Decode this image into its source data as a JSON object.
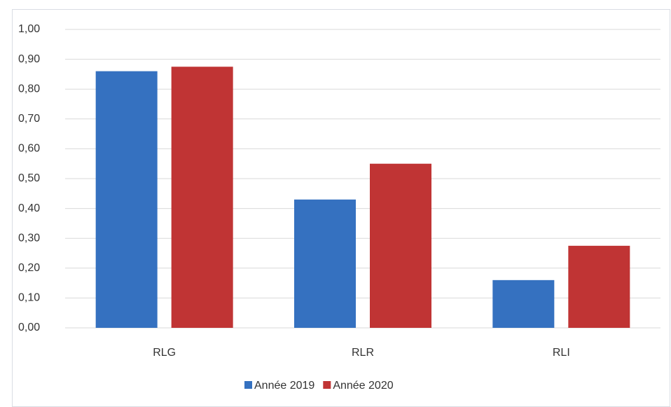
{
  "chart_data": {
    "type": "bar",
    "categories": [
      "RLG",
      "RLR",
      "RLI"
    ],
    "series": [
      {
        "name": "Année 2019",
        "color": "#3571c0",
        "values": [
          0.86,
          0.43,
          0.16
        ]
      },
      {
        "name": "Année 2020",
        "color": "#c03434",
        "values": [
          0.875,
          0.55,
          0.275
        ]
      }
    ],
    "ylim": [
      0,
      1
    ],
    "yticks": [
      {
        "value": 0,
        "label": "0,00"
      },
      {
        "value": 0.1,
        "label": "0,10"
      },
      {
        "value": 0.2,
        "label": "0,20"
      },
      {
        "value": 0.3,
        "label": "0,30"
      },
      {
        "value": 0.4,
        "label": "0,40"
      },
      {
        "value": 0.5,
        "label": "0,50"
      },
      {
        "value": 0.6,
        "label": "0,60"
      },
      {
        "value": 0.7,
        "label": "0,70"
      },
      {
        "value": 0.8,
        "label": "0,80"
      },
      {
        "value": 0.9,
        "label": "0,90"
      },
      {
        "value": 1,
        "label": "1,00"
      }
    ],
    "grid": true,
    "legend": "bottom"
  }
}
